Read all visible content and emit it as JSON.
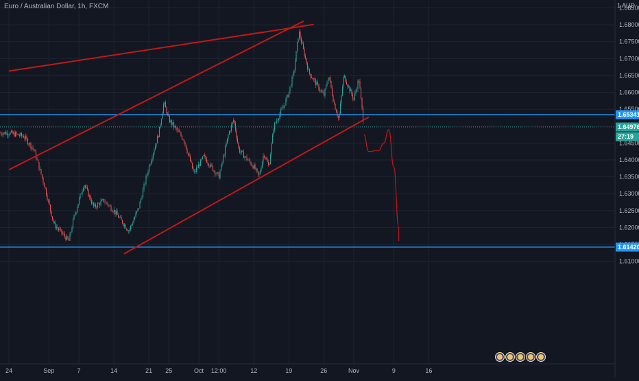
{
  "header": {
    "symbol_title": "Euro / Australian Dollar, 1h, FXCM",
    "currency": "AUD"
  },
  "colors": {
    "background": "#131722",
    "grid": "#1e2433",
    "up": "#26a69a",
    "down": "#ef5350",
    "trend": "#c21818",
    "level": "#2196f3",
    "axis_text": "#b2b5be"
  },
  "chart_data": {
    "type": "candlestick",
    "timeframe": "1h",
    "y_axis": {
      "ticks": [
        "1.68500",
        "1.68000",
        "1.67500",
        "1.67000",
        "1.66500",
        "1.66000",
        "1.65500",
        "1.65000",
        "1.64500",
        "1.64000",
        "1.63500",
        "1.63000",
        "1.62500",
        "1.62000",
        "1.61500",
        "1.61000"
      ],
      "ylim": [
        1.6058,
        1.6905
      ]
    },
    "x_axis": {
      "labels": [
        "24",
        "Sep",
        "7",
        "14",
        "21",
        "25",
        "Oct",
        "12:00",
        "12",
        "19",
        "26",
        "Nov",
        "9",
        "16"
      ]
    },
    "price_path": [
      {
        "t": "Aug 24",
        "p": 1.648
      },
      {
        "t": "Aug 27",
        "p": 1.647
      },
      {
        "t": "Aug 29",
        "p": 1.643
      },
      {
        "t": "Aug 31",
        "p": 1.633
      },
      {
        "t": "Sep 2",
        "p": 1.621
      },
      {
        "t": "Sep 5",
        "p": 1.616
      },
      {
        "t": "Sep 6",
        "p": 1.623
      },
      {
        "t": "Sep 8",
        "p": 1.633
      },
      {
        "t": "Sep 10",
        "p": 1.626
      },
      {
        "t": "Sep 12",
        "p": 1.628
      },
      {
        "t": "Sep 14",
        "p": 1.625
      },
      {
        "t": "Sep 17",
        "p": 1.619
      },
      {
        "t": "Sep 19",
        "p": 1.626
      },
      {
        "t": "Sep 21",
        "p": 1.638
      },
      {
        "t": "Sep 23",
        "p": 1.648
      },
      {
        "t": "Sep 24",
        "p": 1.657
      },
      {
        "t": "Sep 25",
        "p": 1.652
      },
      {
        "t": "Sep 28",
        "p": 1.646
      },
      {
        "t": "Sep 30",
        "p": 1.636
      },
      {
        "t": "Oct 2",
        "p": 1.641
      },
      {
        "t": "Oct 5",
        "p": 1.635
      },
      {
        "t": "Oct 7",
        "p": 1.648
      },
      {
        "t": "Oct 8",
        "p": 1.652
      },
      {
        "t": "Oct 9",
        "p": 1.643
      },
      {
        "t": "Oct 12",
        "p": 1.638
      },
      {
        "t": "Oct 13",
        "p": 1.635
      },
      {
        "t": "Oct 14",
        "p": 1.642
      },
      {
        "t": "Oct 15",
        "p": 1.638
      },
      {
        "t": "Oct 16",
        "p": 1.65
      },
      {
        "t": "Oct 18",
        "p": 1.656
      },
      {
        "t": "Oct 19",
        "p": 1.66
      },
      {
        "t": "Oct 20",
        "p": 1.666
      },
      {
        "t": "Oct 21",
        "p": 1.678
      },
      {
        "t": "Oct 22",
        "p": 1.672
      },
      {
        "t": "Oct 23",
        "p": 1.666
      },
      {
        "t": "Oct 26",
        "p": 1.659
      },
      {
        "t": "Oct 27",
        "p": 1.665
      },
      {
        "t": "Oct 28",
        "p": 1.657
      },
      {
        "t": "Oct 29",
        "p": 1.652
      },
      {
        "t": "Oct 30",
        "p": 1.665
      },
      {
        "t": "Nov 1",
        "p": 1.658
      },
      {
        "t": "Nov 2",
        "p": 1.664
      },
      {
        "t": "Nov 3",
        "p": 1.65
      }
    ],
    "drawings": {
      "trend_lines": [
        {
          "name": "upper-channel-line",
          "from": {
            "t": "Aug 24",
            "p": 1.6663
          },
          "to": {
            "t": "Oct 24",
            "p": 1.6801
          }
        },
        {
          "name": "rising-wedge-upper",
          "from": {
            "t": "Aug 24",
            "p": 1.6371
          },
          "to": {
            "t": "Oct 22",
            "p": 1.6811
          }
        },
        {
          "name": "rising-support-line",
          "from": {
            "t": "Sep 16",
            "p": 1.6122
          },
          "to": {
            "t": "Nov 4",
            "p": 1.6527
          }
        }
      ],
      "horizontal_levels": [
        {
          "name": "resistance-level",
          "price": 1.65341
        },
        {
          "name": "support-level",
          "price": 1.6142
        }
      ],
      "projection_path": [
        {
          "t": "Nov 3",
          "p": 1.6475
        },
        {
          "t": "Nov 4",
          "p": 1.6425
        },
        {
          "t": "Nov 6",
          "p": 1.6428
        },
        {
          "t": "Nov 7",
          "p": 1.645
        },
        {
          "t": "Nov 8",
          "p": 1.649
        },
        {
          "t": "Nov 9",
          "p": 1.638
        },
        {
          "t": "Nov 10",
          "p": 1.62
        },
        {
          "t": "Nov 10",
          "p": 1.616
        }
      ]
    },
    "price_labels": [
      {
        "text": "1.65341",
        "kind": "level"
      },
      {
        "text": "1.64976",
        "kind": "last"
      },
      {
        "text": "27:19",
        "kind": "countdown"
      },
      {
        "text": "1.61420",
        "kind": "level"
      }
    ],
    "last_price": 1.64976,
    "countdown": "27:19"
  }
}
